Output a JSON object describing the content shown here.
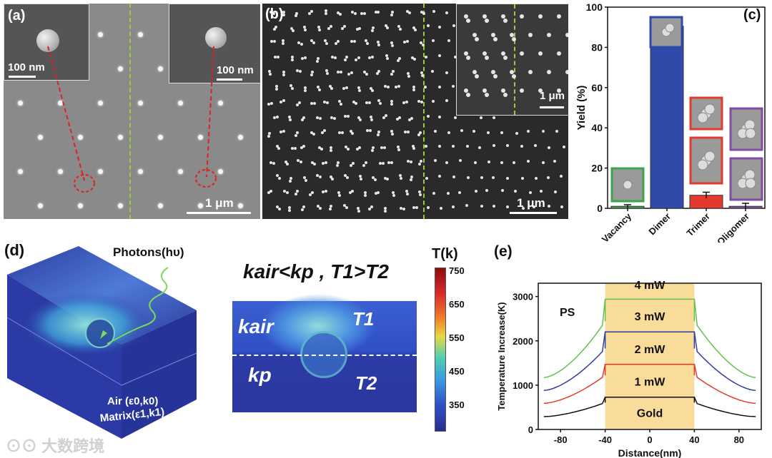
{
  "panel_a": {
    "label": "(a)",
    "inset_left_scale": "100 nm",
    "inset_right_scale": "100 nm",
    "scale_bar": "1 μm"
  },
  "panel_b": {
    "label": "(b)",
    "inset_scale": "1 μm",
    "scale_bar": "1 μm"
  },
  "panel_d": {
    "label": "(d)",
    "photons": "Photons(hυ)",
    "air_label": "Air (ε0,k0)",
    "matrix_label": "Matrix(ε1,k1)",
    "equation": "kair<kp , T1>T2",
    "k_air": "kair",
    "k_p": "kp",
    "t1": "T1",
    "t2": "T2",
    "colorbar_title": "T(k)",
    "colorbar_ticks": [
      "750",
      "650",
      "550",
      "450",
      "350"
    ]
  },
  "watermark": "大数跨境",
  "colors": {
    "vacancy": "#3fa34d",
    "dimer": "#2f4aa8",
    "trimer": "#e23b2e",
    "oligomer": "#7d4ea3",
    "highlight": "#f9dc9a"
  },
  "chart_data": [
    {
      "panel": "(c)",
      "type": "bar",
      "categories": [
        "Vacancy",
        "Dimer",
        "Trimer",
        "Oligomer"
      ],
      "values": [
        1,
        90.5,
        6.5,
        1
      ],
      "errors": [
        0.8,
        2.5,
        1.5,
        1.5
      ],
      "ylabel": "Yield (%)",
      "ylim": [
        0,
        100
      ],
      "yticks": [
        "0",
        "20",
        "40",
        "60",
        "80",
        "100"
      ]
    },
    {
      "panel": "(e)",
      "type": "line",
      "xlabel": "Distance(nm)",
      "ylabel": "Temperature Increase(K)",
      "xlim": [
        -100,
        100
      ],
      "ylim": [
        0,
        3300
      ],
      "xticks": [
        "-80",
        "-40",
        "0",
        "40",
        "80"
      ],
      "yticks": [
        "0",
        "1000",
        "2000",
        "3000"
      ],
      "annotation": "PS",
      "highlight_range": [
        -40,
        40
      ],
      "series": [
        {
          "name": "Gold",
          "plateau": 730,
          "edge": 290,
          "color": "#111111"
        },
        {
          "name": "1 mW",
          "plateau": 1470,
          "edge": 590,
          "color": "#e23b2e"
        },
        {
          "name": "2 mW",
          "plateau": 2200,
          "edge": 880,
          "color": "#2f3ea0"
        },
        {
          "name": "3 mW",
          "plateau": 2200,
          "edge": 880,
          "color": "#2f3ea0"
        },
        {
          "name": "4 mW",
          "plateau": 2940,
          "edge": 1170,
          "color": "#62c24a"
        }
      ],
      "labels": [
        "4 mW",
        "3 mW",
        "2 mW",
        "1 mW",
        "Gold"
      ]
    }
  ]
}
